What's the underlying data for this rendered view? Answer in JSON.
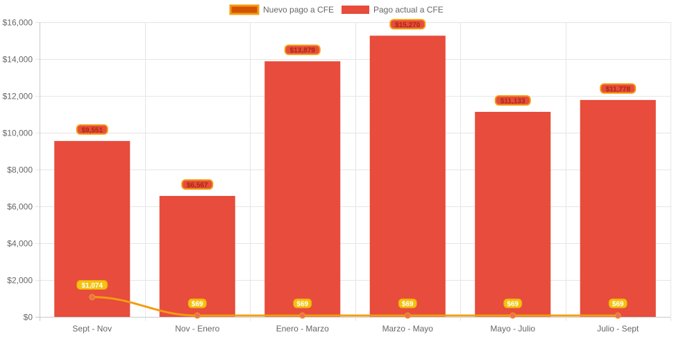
{
  "chart_data": {
    "type": "bar",
    "categories": [
      "Sept - Nov",
      "Nov - Enero",
      "Enero - Marzo",
      "Marzo - Mayo",
      "Mayo - Julio",
      "Julio - Sept"
    ],
    "series": [
      {
        "name": "Pago actual a CFE",
        "type": "bar",
        "color": "#e74c3c",
        "values": [
          9551,
          6567,
          13879,
          15270,
          11133,
          11778
        ],
        "labels": [
          "$9,551",
          "$6,567",
          "$13,879",
          "$15,270",
          "$11,133",
          "$11,778"
        ]
      },
      {
        "name": "Nuevo pago a CFE",
        "type": "line",
        "color": "#f39c12",
        "values": [
          1074,
          69,
          69,
          69,
          69,
          69
        ],
        "labels": [
          "$1,074",
          "$69",
          "$69",
          "$69",
          "$69",
          "$69"
        ]
      }
    ],
    "ylim": [
      0,
      16000
    ],
    "yticks": [
      "$0",
      "$2,000",
      "$4,000",
      "$6,000",
      "$8,000",
      "$10,000",
      "$12,000",
      "$14,000",
      "$16,000"
    ],
    "grid": true,
    "legend_position": "top-center",
    "title": "",
    "xlabel": "",
    "ylabel": ""
  },
  "legend": {
    "items": [
      {
        "label": "Nuevo pago a CFE",
        "fill": "#d35400",
        "stroke": "#f39c12"
      },
      {
        "label": "Pago actual a CFE",
        "fill": "#e74c3c",
        "stroke": "#e74c3c"
      }
    ]
  }
}
